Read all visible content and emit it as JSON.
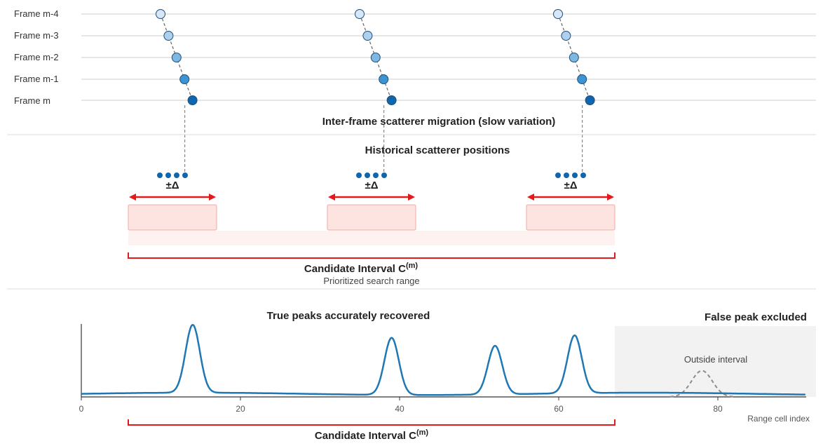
{
  "frames": [
    "Frame m-4",
    "Frame m-3",
    "Frame m-2",
    "Frame m-1",
    "Frame m"
  ],
  "migration_caption": "Inter-frame scatterer migration (slow variation)",
  "history_caption": "Historical scatterer positions",
  "delta_label": "±Δ",
  "candidate_label": "Candidate Interval C",
  "candidate_sup": "(m)",
  "candidate_sub": "Prioritized search range",
  "peaks_caption": "True peaks accurately recovered",
  "false_caption": "False peak excluded",
  "outside_label": "Outside interval",
  "x_axis_label": "Range cell index",
  "colors": {
    "frame_fills": [
      "#d6e7f7",
      "#acd0ee",
      "#7fb7e3",
      "#3d94d2",
      "#1066ad"
    ],
    "accent_red": "#e31a1c",
    "signal_blue": "#1f77b4",
    "interval_fill": "#fde4e1"
  },
  "chart_data": {
    "type": "line",
    "x_ticks": [
      0,
      20,
      40,
      60,
      80
    ],
    "xlim": [
      0,
      91
    ],
    "series": [
      {
        "peaks": [
          14,
          39,
          52,
          62
        ],
        "peak_heights": [
          0.88,
          0.74,
          0.63,
          0.75
        ],
        "baseline": 0.04
      }
    ],
    "excluded_peak": {
      "x": 78,
      "height": 0.34
    },
    "candidate_interval": [
      6,
      67
    ]
  }
}
